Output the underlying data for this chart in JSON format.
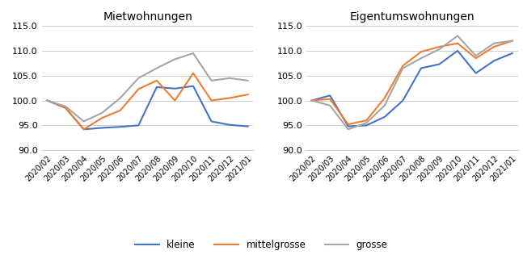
{
  "x_labels": [
    "2020/02",
    "2020/03",
    "2020/04",
    "2020/05",
    "2020/06",
    "2020/07",
    "2020/08",
    "2020/09",
    "2020/10",
    "2020/11",
    "2020/12",
    "2021/01"
  ],
  "miete": {
    "title": "Mietwohnungen",
    "kleine": [
      100.0,
      98.5,
      94.2,
      94.5,
      94.7,
      95.0,
      102.7,
      102.4,
      102.9,
      95.8,
      95.1,
      94.8
    ],
    "mittelgrosse": [
      100.0,
      98.5,
      94.2,
      96.5,
      98.0,
      102.3,
      104.0,
      100.0,
      105.5,
      100.0,
      100.5,
      101.2
    ],
    "grosse": [
      100.0,
      98.8,
      95.8,
      97.5,
      100.5,
      104.5,
      106.5,
      108.3,
      109.5,
      104.0,
      104.5,
      104.0
    ]
  },
  "eigen": {
    "title": "Eigentumswohnungen",
    "kleine": [
      100.0,
      101.0,
      94.8,
      95.0,
      96.7,
      100.0,
      106.5,
      107.3,
      110.0,
      105.5,
      108.0,
      109.5
    ],
    "mittelgrosse": [
      100.0,
      100.3,
      95.2,
      96.0,
      100.5,
      107.0,
      109.8,
      110.8,
      111.5,
      108.5,
      110.8,
      112.0
    ],
    "grosse": [
      100.0,
      99.0,
      94.2,
      95.5,
      99.0,
      106.5,
      108.5,
      110.3,
      113.0,
      109.0,
      111.5,
      112.0
    ]
  },
  "colors": {
    "kleine": "#4472C4",
    "mittelgrosse": "#ED7D31",
    "grosse": "#A5A5A5"
  },
  "ylim": [
    90.0,
    115.0
  ],
  "yticks": [
    90.0,
    95.0,
    100.0,
    105.0,
    110.0,
    115.0
  ],
  "legend_labels": [
    "kleine",
    "mittelgrosse",
    "grosse"
  ]
}
